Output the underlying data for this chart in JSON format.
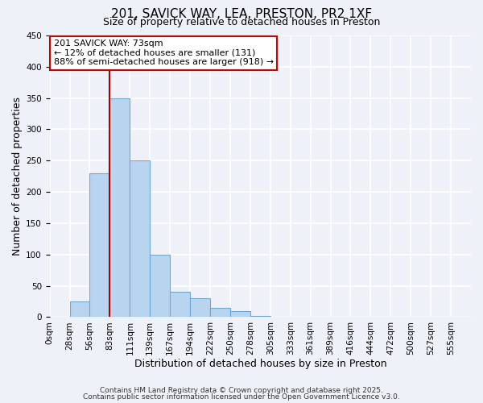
{
  "title": "201, SAVICK WAY, LEA, PRESTON, PR2 1XF",
  "subtitle": "Size of property relative to detached houses in Preston",
  "xlabel": "Distribution of detached houses by size in Preston",
  "ylabel": "Number of detached properties",
  "bar_labels": [
    "0sqm",
    "28sqm",
    "56sqm",
    "83sqm",
    "111sqm",
    "139sqm",
    "167sqm",
    "194sqm",
    "222sqm",
    "250sqm",
    "278sqm",
    "305sqm",
    "333sqm",
    "361sqm",
    "389sqm",
    "416sqm",
    "444sqm",
    "472sqm",
    "500sqm",
    "527sqm",
    "555sqm"
  ],
  "bar_values": [
    0,
    25,
    230,
    350,
    250,
    100,
    40,
    30,
    15,
    10,
    2,
    0,
    0,
    0,
    0,
    0,
    0,
    0,
    0,
    0,
    0
  ],
  "bar_color": "#b8d4ee",
  "bar_edge_color": "#6aaad4",
  "vline_x_index": 3,
  "vline_color": "#aa0000",
  "ylim": [
    0,
    450
  ],
  "yticks": [
    0,
    50,
    100,
    150,
    200,
    250,
    300,
    350,
    400,
    450
  ],
  "annotation_title": "201 SAVICK WAY: 73sqm",
  "annotation_line2": "← 12% of detached houses are smaller (131)",
  "annotation_line3": "88% of semi-detached houses are larger (918) →",
  "annotation_box_color": "#ffffff",
  "annotation_box_edge_color": "#cc0000",
  "footer_line1": "Contains HM Land Registry data © Crown copyright and database right 2025.",
  "footer_line2": "Contains public sector information licensed under the Open Government Licence v3.0.",
  "background_color": "#eef2f8",
  "grid_color": "#ffffff",
  "title_fontsize": 11,
  "subtitle_fontsize": 9,
  "axis_label_fontsize": 9,
  "tick_fontsize": 7.5,
  "annotation_fontsize": 8,
  "footer_fontsize": 6.5
}
